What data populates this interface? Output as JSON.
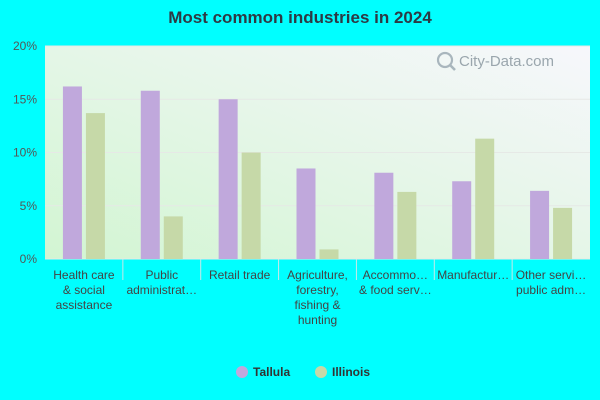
{
  "chart_data": {
    "type": "bar",
    "title": "Most common industries in 2024",
    "categories": [
      [
        "Health care",
        "& social",
        "assistance"
      ],
      [
        "Public",
        "administrat…"
      ],
      [
        "Retail trade"
      ],
      [
        "Agriculture,",
        "forestry,",
        "fishing &",
        "hunting"
      ],
      [
        "Accommo…",
        "& food serv…"
      ],
      [
        "Manufactur…"
      ],
      [
        "Other servi…",
        "public adm…"
      ]
    ],
    "series": [
      {
        "name": "Tallula",
        "color": "#c0a8dc",
        "values": [
          16.2,
          15.8,
          15.0,
          8.5,
          8.1,
          7.3,
          6.4
        ]
      },
      {
        "name": "Illinois",
        "color": "#c6d9a8",
        "values": [
          13.7,
          4.0,
          10.0,
          0.9,
          6.3,
          11.3,
          4.8
        ]
      }
    ],
    "ylim": [
      0,
      20
    ],
    "yticks": [
      0,
      5,
      10,
      15,
      20
    ],
    "ytick_labels": [
      "0%",
      "5%",
      "10%",
      "15%",
      "20%"
    ],
    "grid": true,
    "legend_position": "bottom-center"
  },
  "watermark": "City-Data.com"
}
